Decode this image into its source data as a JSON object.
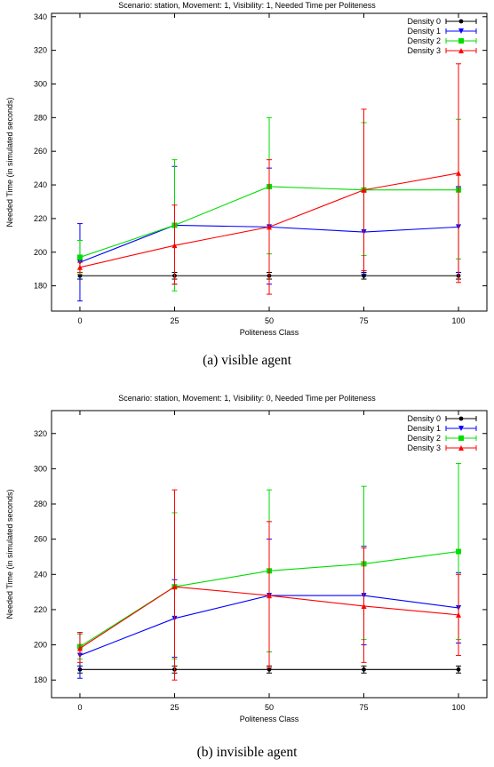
{
  "captions": [
    "(a)  visible agent",
    "(b)  invisible agent"
  ],
  "chart_data": [
    {
      "type": "line",
      "title": "Scenario: station, Movement: 1, Visibility: 1, Needed Time per Politeness",
      "xlabel": "Politeness Class",
      "ylabel": "Needed Time (in simulated seconds)",
      "x": [
        0,
        25,
        50,
        75,
        100
      ],
      "xlim": [
        -7.5,
        107.5
      ],
      "ylim": [
        165,
        342
      ],
      "yticks": [
        180,
        200,
        220,
        240,
        260,
        280,
        300,
        320,
        340
      ],
      "xticks": [
        0,
        25,
        50,
        75,
        100
      ],
      "legend_position": "top-right",
      "series": [
        {
          "name": "Density 0",
          "color": "#000000",
          "marker": "circle",
          "values": [
            186,
            186,
            186,
            186,
            186
          ],
          "err_low": [
            184,
            184,
            184,
            184,
            184
          ],
          "err_high": [
            188,
            188,
            188,
            188,
            188
          ]
        },
        {
          "name": "Density 1",
          "color": "#0000ff",
          "marker": "triangle-down",
          "values": [
            194,
            216,
            215,
            212,
            215
          ],
          "err_low": [
            171,
            181,
            181,
            187,
            188
          ],
          "err_high": [
            217,
            251,
            250,
            236,
            239
          ]
        },
        {
          "name": "Density 2",
          "color": "#00dd00",
          "marker": "square",
          "values": [
            197,
            216,
            239,
            237,
            237
          ],
          "err_low": [
            187,
            177,
            199,
            198,
            196
          ],
          "err_high": [
            207,
            255,
            280,
            277,
            279
          ]
        },
        {
          "name": "Density 3",
          "color": "#ff0000",
          "marker": "triangle-up",
          "values": [
            191,
            204,
            215,
            237,
            247
          ],
          "err_low": [
            188,
            181,
            175,
            189,
            182
          ],
          "err_high": [
            194,
            228,
            255,
            285,
            312
          ]
        }
      ]
    },
    {
      "type": "line",
      "title": "Scenario: station, Movement: 1, Visibility: 0, Needed Time per Politeness",
      "xlabel": "Politeness Class",
      "ylabel": "Needed Time (in simulated seconds)",
      "x": [
        0,
        25,
        50,
        75,
        100
      ],
      "xlim": [
        -7.5,
        107.5
      ],
      "ylim": [
        170,
        333
      ],
      "yticks": [
        180,
        200,
        220,
        240,
        260,
        280,
        300,
        320
      ],
      "xticks": [
        0,
        25,
        50,
        75,
        100
      ],
      "legend_position": "top-right",
      "series": [
        {
          "name": "Density 0",
          "color": "#000000",
          "marker": "circle",
          "values": [
            186,
            186,
            186,
            186,
            186
          ],
          "err_low": [
            184,
            184,
            184,
            184,
            184
          ],
          "err_high": [
            188,
            188,
            188,
            188,
            188
          ]
        },
        {
          "name": "Density 1",
          "color": "#0000ff",
          "marker": "triangle-down",
          "values": [
            194,
            215,
            228,
            228,
            221
          ],
          "err_low": [
            181,
            193,
            196,
            200,
            201
          ],
          "err_high": [
            207,
            237,
            260,
            256,
            241
          ]
        },
        {
          "name": "Density 2",
          "color": "#00dd00",
          "marker": "square",
          "values": [
            199,
            233,
            242,
            246,
            253
          ],
          "err_low": [
            192,
            192,
            196,
            203,
            203
          ],
          "err_high": [
            206,
            275,
            288,
            290,
            303
          ]
        },
        {
          "name": "Density 3",
          "color": "#ff0000",
          "marker": "triangle-up",
          "values": [
            198,
            233,
            228,
            222,
            217
          ],
          "err_low": [
            190,
            180,
            187,
            190,
            194
          ],
          "err_high": [
            207,
            288,
            270,
            255,
            240
          ]
        }
      ]
    }
  ]
}
